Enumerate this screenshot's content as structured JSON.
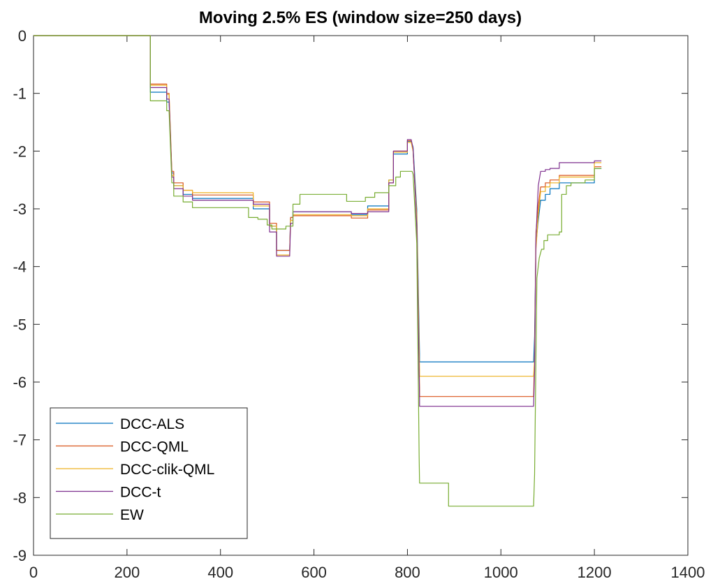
{
  "chart_data": {
    "type": "line",
    "title": "Moving 2.5% ES (window size=250 days)",
    "xlabel": "",
    "ylabel": "",
    "xlim": [
      0,
      1400
    ],
    "ylim": [
      -9,
      0
    ],
    "xticks": [
      0,
      200,
      400,
      600,
      800,
      1000,
      1200,
      1400
    ],
    "xtick_labels": [
      "0",
      "200",
      "400",
      "600",
      "800",
      "1000",
      "1200",
      "1400"
    ],
    "yticks": [
      0,
      -1,
      -2,
      -3,
      -4,
      -5,
      -6,
      -7,
      -8,
      -9
    ],
    "ytick_labels": [
      "0",
      "-1",
      "-2",
      "-3",
      "-4",
      "-5",
      "-6",
      "-7",
      "-8",
      "-9"
    ],
    "grid": false,
    "legend": {
      "position": "bottom-left"
    },
    "series": [
      {
        "name": "DCC-ALS",
        "color": "#0072BD",
        "points": [
          [
            0,
            0
          ],
          [
            250,
            0
          ],
          [
            250,
            -0.98
          ],
          [
            285,
            -0.98
          ],
          [
            285,
            -1.15
          ],
          [
            290,
            -1.15
          ],
          [
            296,
            -2.38
          ],
          [
            300,
            -2.38
          ],
          [
            300,
            -2.6
          ],
          [
            320,
            -2.6
          ],
          [
            320,
            -2.75
          ],
          [
            340,
            -2.75
          ],
          [
            340,
            -2.82
          ],
          [
            470,
            -2.82
          ],
          [
            470,
            -3.0
          ],
          [
            505,
            -3.0
          ],
          [
            505,
            -3.3
          ],
          [
            520,
            -3.3
          ],
          [
            520,
            -3.72
          ],
          [
            548,
            -3.72
          ],
          [
            550,
            -3.15
          ],
          [
            555,
            -3.15
          ],
          [
            555,
            -3.05
          ],
          [
            680,
            -3.05
          ],
          [
            680,
            -3.1
          ],
          [
            715,
            -3.1
          ],
          [
            715,
            -2.95
          ],
          [
            760,
            -2.95
          ],
          [
            760,
            -2.5
          ],
          [
            770,
            -2.5
          ],
          [
            770,
            -2.05
          ],
          [
            800,
            -2.05
          ],
          [
            800,
            -1.83
          ],
          [
            808,
            -1.83
          ],
          [
            812,
            -1.93
          ],
          [
            820,
            -3.0
          ],
          [
            826,
            -5.5
          ],
          [
            826,
            -5.65
          ],
          [
            1070,
            -5.65
          ],
          [
            1072,
            -5.2
          ],
          [
            1075,
            -3.6
          ],
          [
            1080,
            -3.2
          ],
          [
            1085,
            -2.85
          ],
          [
            1095,
            -2.85
          ],
          [
            1095,
            -2.75
          ],
          [
            1105,
            -2.75
          ],
          [
            1105,
            -2.65
          ],
          [
            1125,
            -2.65
          ],
          [
            1125,
            -2.55
          ],
          [
            1200,
            -2.55
          ],
          [
            1200,
            -2.3
          ],
          [
            1215,
            -2.3
          ]
        ]
      },
      {
        "name": "DCC-QML",
        "color": "#D95319",
        "points": [
          [
            0,
            0
          ],
          [
            250,
            0
          ],
          [
            250,
            -0.84
          ],
          [
            285,
            -0.84
          ],
          [
            285,
            -1.0
          ],
          [
            290,
            -1.0
          ],
          [
            296,
            -2.35
          ],
          [
            300,
            -2.35
          ],
          [
            300,
            -2.55
          ],
          [
            320,
            -2.55
          ],
          [
            320,
            -2.68
          ],
          [
            340,
            -2.68
          ],
          [
            340,
            -2.76
          ],
          [
            470,
            -2.76
          ],
          [
            470,
            -2.88
          ],
          [
            505,
            -2.88
          ],
          [
            505,
            -3.25
          ],
          [
            520,
            -3.25
          ],
          [
            520,
            -3.72
          ],
          [
            548,
            -3.72
          ],
          [
            550,
            -3.15
          ],
          [
            555,
            -3.15
          ],
          [
            555,
            -3.12
          ],
          [
            680,
            -3.12
          ],
          [
            680,
            -3.16
          ],
          [
            715,
            -3.16
          ],
          [
            715,
            -3.02
          ],
          [
            760,
            -3.02
          ],
          [
            760,
            -2.55
          ],
          [
            770,
            -2.55
          ],
          [
            770,
            -2.0
          ],
          [
            800,
            -2.0
          ],
          [
            800,
            -1.82
          ],
          [
            808,
            -1.82
          ],
          [
            812,
            -2.0
          ],
          [
            820,
            -3.2
          ],
          [
            826,
            -6.1
          ],
          [
            826,
            -6.25
          ],
          [
            1070,
            -6.25
          ],
          [
            1072,
            -5.5
          ],
          [
            1075,
            -3.4
          ],
          [
            1080,
            -2.95
          ],
          [
            1085,
            -2.62
          ],
          [
            1095,
            -2.62
          ],
          [
            1095,
            -2.55
          ],
          [
            1105,
            -2.55
          ],
          [
            1105,
            -2.5
          ],
          [
            1125,
            -2.5
          ],
          [
            1125,
            -2.42
          ],
          [
            1200,
            -2.42
          ],
          [
            1200,
            -2.27
          ],
          [
            1215,
            -2.27
          ]
        ]
      },
      {
        "name": "DCC-clik-QML",
        "color": "#EDB120",
        "points": [
          [
            0,
            0
          ],
          [
            250,
            0
          ],
          [
            250,
            -0.86
          ],
          [
            285,
            -0.86
          ],
          [
            285,
            -1.02
          ],
          [
            290,
            -1.02
          ],
          [
            296,
            -2.42
          ],
          [
            300,
            -2.42
          ],
          [
            300,
            -2.6
          ],
          [
            320,
            -2.6
          ],
          [
            320,
            -2.68
          ],
          [
            340,
            -2.68
          ],
          [
            340,
            -2.72
          ],
          [
            470,
            -2.72
          ],
          [
            470,
            -2.95
          ],
          [
            505,
            -2.95
          ],
          [
            505,
            -3.3
          ],
          [
            520,
            -3.3
          ],
          [
            520,
            -3.8
          ],
          [
            548,
            -3.8
          ],
          [
            550,
            -3.2
          ],
          [
            555,
            -3.2
          ],
          [
            555,
            -3.1
          ],
          [
            680,
            -3.1
          ],
          [
            680,
            -3.12
          ],
          [
            715,
            -3.12
          ],
          [
            715,
            -3.0
          ],
          [
            760,
            -3.0
          ],
          [
            760,
            -2.5
          ],
          [
            770,
            -2.5
          ],
          [
            770,
            -2.02
          ],
          [
            800,
            -2.02
          ],
          [
            800,
            -1.85
          ],
          [
            808,
            -1.85
          ],
          [
            812,
            -2.0
          ],
          [
            820,
            -3.1
          ],
          [
            826,
            -5.8
          ],
          [
            826,
            -5.9
          ],
          [
            1070,
            -5.9
          ],
          [
            1072,
            -5.6
          ],
          [
            1075,
            -3.7
          ],
          [
            1080,
            -3.1
          ],
          [
            1085,
            -2.7
          ],
          [
            1095,
            -2.7
          ],
          [
            1095,
            -2.62
          ],
          [
            1105,
            -2.62
          ],
          [
            1105,
            -2.55
          ],
          [
            1125,
            -2.55
          ],
          [
            1125,
            -2.45
          ],
          [
            1200,
            -2.45
          ],
          [
            1200,
            -2.2
          ],
          [
            1215,
            -2.2
          ]
        ]
      },
      {
        "name": "DCC-t",
        "color": "#7E2F8E",
        "points": [
          [
            0,
            0
          ],
          [
            250,
            0
          ],
          [
            250,
            -0.9
          ],
          [
            285,
            -0.9
          ],
          [
            285,
            -1.1
          ],
          [
            290,
            -1.1
          ],
          [
            296,
            -2.45
          ],
          [
            300,
            -2.45
          ],
          [
            300,
            -2.65
          ],
          [
            320,
            -2.65
          ],
          [
            320,
            -2.78
          ],
          [
            340,
            -2.78
          ],
          [
            340,
            -2.85
          ],
          [
            470,
            -2.85
          ],
          [
            470,
            -2.92
          ],
          [
            505,
            -2.92
          ],
          [
            505,
            -3.4
          ],
          [
            520,
            -3.4
          ],
          [
            520,
            -3.82
          ],
          [
            548,
            -3.82
          ],
          [
            550,
            -3.25
          ],
          [
            555,
            -3.25
          ],
          [
            555,
            -3.05
          ],
          [
            680,
            -3.05
          ],
          [
            680,
            -3.08
          ],
          [
            715,
            -3.08
          ],
          [
            715,
            -3.05
          ],
          [
            760,
            -3.05
          ],
          [
            760,
            -2.55
          ],
          [
            770,
            -2.55
          ],
          [
            770,
            -2.0
          ],
          [
            800,
            -2.0
          ],
          [
            800,
            -1.8
          ],
          [
            808,
            -1.8
          ],
          [
            812,
            -1.95
          ],
          [
            820,
            -3.3
          ],
          [
            826,
            -6.3
          ],
          [
            826,
            -6.42
          ],
          [
            1070,
            -6.42
          ],
          [
            1072,
            -5.8
          ],
          [
            1075,
            -3.5
          ],
          [
            1080,
            -2.6
          ],
          [
            1085,
            -2.35
          ],
          [
            1095,
            -2.35
          ],
          [
            1095,
            -2.32
          ],
          [
            1105,
            -2.32
          ],
          [
            1105,
            -2.3
          ],
          [
            1125,
            -2.3
          ],
          [
            1125,
            -2.2
          ],
          [
            1200,
            -2.2
          ],
          [
            1200,
            -2.17
          ],
          [
            1215,
            -2.17
          ]
        ]
      },
      {
        "name": "EW",
        "color": "#77AC30",
        "points": [
          [
            0,
            0
          ],
          [
            250,
            0
          ],
          [
            250,
            -1.13
          ],
          [
            285,
            -1.13
          ],
          [
            285,
            -1.3
          ],
          [
            290,
            -1.3
          ],
          [
            296,
            -2.55
          ],
          [
            300,
            -2.55
          ],
          [
            300,
            -2.78
          ],
          [
            320,
            -2.78
          ],
          [
            320,
            -2.88
          ],
          [
            340,
            -2.88
          ],
          [
            340,
            -2.98
          ],
          [
            460,
            -2.98
          ],
          [
            460,
            -3.15
          ],
          [
            480,
            -3.15
          ],
          [
            480,
            -3.18
          ],
          [
            500,
            -3.18
          ],
          [
            500,
            -3.28
          ],
          [
            510,
            -3.28
          ],
          [
            510,
            -3.35
          ],
          [
            540,
            -3.35
          ],
          [
            540,
            -3.3
          ],
          [
            555,
            -3.3
          ],
          [
            555,
            -2.92
          ],
          [
            570,
            -2.92
          ],
          [
            570,
            -2.75
          ],
          [
            670,
            -2.75
          ],
          [
            670,
            -2.87
          ],
          [
            710,
            -2.87
          ],
          [
            710,
            -2.8
          ],
          [
            730,
            -2.8
          ],
          [
            730,
            -2.72
          ],
          [
            760,
            -2.72
          ],
          [
            760,
            -2.6
          ],
          [
            775,
            -2.6
          ],
          [
            775,
            -2.45
          ],
          [
            785,
            -2.45
          ],
          [
            785,
            -2.35
          ],
          [
            810,
            -2.35
          ],
          [
            812,
            -2.4
          ],
          [
            820,
            -3.6
          ],
          [
            825,
            -7.3
          ],
          [
            826,
            -7.75
          ],
          [
            888,
            -7.75
          ],
          [
            888,
            -8.15
          ],
          [
            1070,
            -8.15
          ],
          [
            1072,
            -7.6
          ],
          [
            1077,
            -4.2
          ],
          [
            1082,
            -3.85
          ],
          [
            1087,
            -3.7
          ],
          [
            1092,
            -3.7
          ],
          [
            1092,
            -3.55
          ],
          [
            1100,
            -3.55
          ],
          [
            1100,
            -3.45
          ],
          [
            1125,
            -3.45
          ],
          [
            1125,
            -3.4
          ],
          [
            1130,
            -3.4
          ],
          [
            1130,
            -2.75
          ],
          [
            1140,
            -2.75
          ],
          [
            1140,
            -2.6
          ],
          [
            1150,
            -2.6
          ],
          [
            1150,
            -2.55
          ],
          [
            1180,
            -2.55
          ],
          [
            1180,
            -2.5
          ],
          [
            1200,
            -2.5
          ],
          [
            1200,
            -2.3
          ],
          [
            1215,
            -2.3
          ]
        ]
      }
    ]
  }
}
